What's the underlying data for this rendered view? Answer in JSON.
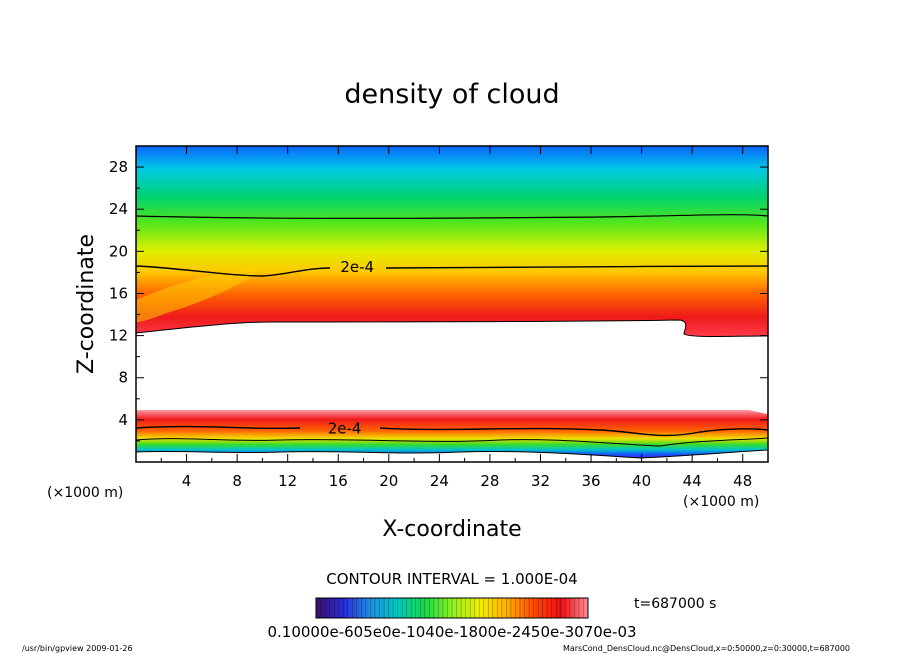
{
  "chart_data": {
    "type": "heatmap",
    "title": "density of cloud",
    "xlabel": "X-coordinate",
    "ylabel": "Z-coordinate",
    "x_unit": "(×1000 m)",
    "y_unit": "(×1000 m)",
    "xlim": [
      0,
      50
    ],
    "ylim": [
      0,
      30
    ],
    "x_ticks": [
      "4",
      "8",
      "12",
      "16",
      "20",
      "24",
      "28",
      "32",
      "36",
      "40",
      "44",
      "48"
    ],
    "y_ticks": [
      "4",
      "8",
      "12",
      "16",
      "20",
      "24",
      "28"
    ],
    "contour_labels": [
      {
        "text": "2e-4",
        "x": 17.5,
        "z": 18.5
      },
      {
        "text": "2e-4",
        "x": 16.5,
        "z": 3.2
      }
    ],
    "contour_interval": "CONTOUR INTERVAL = 1.000E-04",
    "colorbar_labels": "0.10000e-605e0e-1040e-1800e-2450e-3070e-03",
    "colorbar_colors": [
      "#3b0f6b",
      "#2a2ad6",
      "#1f8fe0",
      "#00c8c0",
      "#18d848",
      "#8ef020",
      "#f0f000",
      "#ffb000",
      "#ff4a00",
      "#ea0e12",
      "#ff8a96"
    ],
    "time_label": "t=687000 s",
    "footer_left": "/usr/bin/gpview   2009-01-26",
    "footer_right": "MarsCond_DensCloud.nc@DensCloud,x=0:50000,z=0:30000,t=687000",
    "grid": false
  }
}
